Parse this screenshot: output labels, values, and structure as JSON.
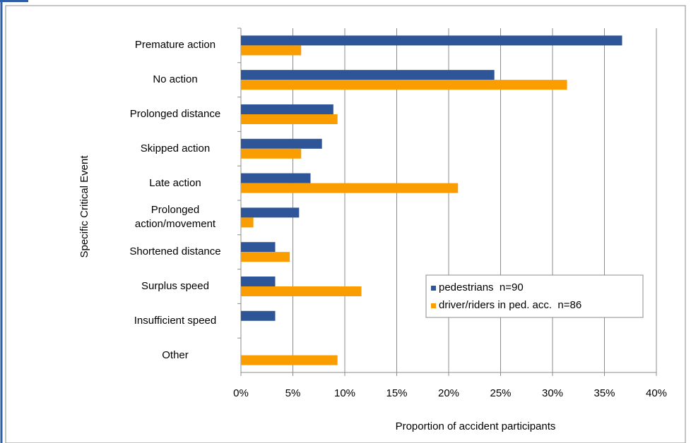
{
  "chart_data": {
    "type": "bar",
    "orientation": "horizontal",
    "categories": [
      "Premature action",
      "No action",
      "Prolonged distance",
      "Skipped action",
      "Late action",
      "Prolonged action/movement",
      "Shortened distance",
      "Surplus speed",
      "Insufficient speed",
      "Other"
    ],
    "series": [
      {
        "name": "pedestrians  n=90",
        "color": "#2e5597",
        "values": [
          36.7,
          24.4,
          8.9,
          7.8,
          6.7,
          5.6,
          3.3,
          3.3,
          3.3,
          null
        ]
      },
      {
        "name": "driver/riders in ped. acc.  n=86",
        "color": "#f99d00",
        "values": [
          5.8,
          31.4,
          9.3,
          5.8,
          20.9,
          1.2,
          4.7,
          11.6,
          null,
          9.3
        ]
      }
    ],
    "xlabel": "Proportion of accident participants",
    "ylabel": "Specific Critical Event",
    "xlim": [
      0,
      40
    ],
    "xticks": [
      {
        "value": 0,
        "label": "0%"
      },
      {
        "value": 5,
        "label": "5%"
      },
      {
        "value": 10,
        "label": "10%"
      },
      {
        "value": 15,
        "label": "15%"
      },
      {
        "value": 20,
        "label": "20%"
      },
      {
        "value": 25,
        "label": "25%"
      },
      {
        "value": 30,
        "label": "30%"
      },
      {
        "value": 35,
        "label": "35%"
      },
      {
        "value": 40,
        "label": "40%"
      }
    ],
    "grid": true,
    "legend": "lower-right"
  }
}
